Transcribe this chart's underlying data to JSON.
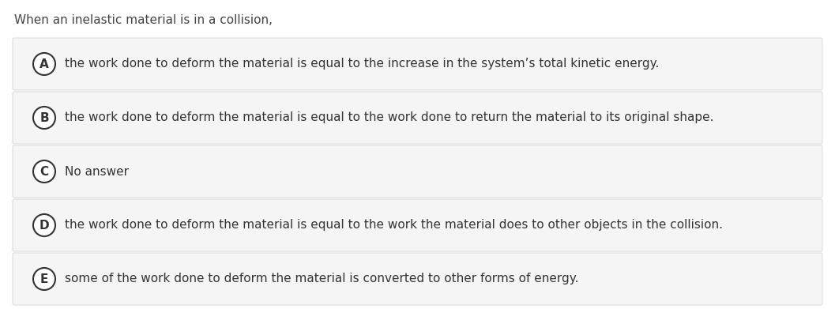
{
  "title": "When an inelastic material is in a collision,",
  "title_fontsize": 11,
  "title_color": "#444444",
  "background_color": "#ffffff",
  "option_bg_color": "#f5f5f5",
  "option_border_color": "#dddddd",
  "option_text_color": "#333333",
  "option_label_color": "#333333",
  "option_fontsize": 11,
  "options": [
    {
      "label": "A",
      "text": "the work done to deform the material is equal to the increase in the system’s total kinetic energy."
    },
    {
      "label": "B",
      "text": "the work done to deform the material is equal to the work done to return the material to its original shape."
    },
    {
      "label": "C",
      "text": "No answer"
    },
    {
      "label": "D",
      "text": "the work done to deform the material is equal to the work the material does to other objects in the collision."
    },
    {
      "label": "E",
      "text": "some of the work done to deform the material is converted to other forms of energy."
    }
  ]
}
